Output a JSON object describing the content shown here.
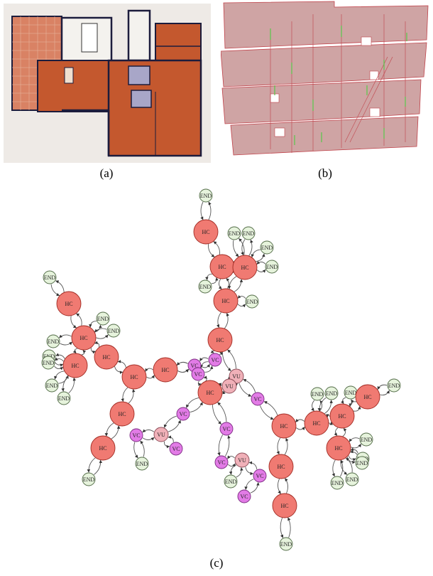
{
  "captions": {
    "a": "(a)",
    "b": "(b)",
    "c": "(c)"
  },
  "node_labels": {
    "hc": "HC",
    "end": "END",
    "vc": "VC",
    "vu": "VU"
  },
  "colors": {
    "hc_fill": "#f07a72",
    "hc_stroke": "#a02a22",
    "end_fill": "#e6f3dc",
    "end_stroke": "#506a45",
    "vc_fill": "#e27be6",
    "vc_stroke": "#7a2a80",
    "vu_fill": "#f0b0b8",
    "vu_stroke": "#8a4a55",
    "edge": "#555555",
    "plan_wall": "#1c1c3c",
    "plan_room": "#c4582e",
    "plan_terrace": "#d98264",
    "model_fill": "#c79494",
    "model_edge": "#c0424a",
    "model_joint": "#58c84a"
  }
}
